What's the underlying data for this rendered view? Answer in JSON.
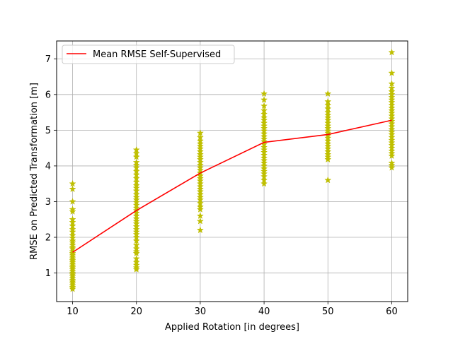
{
  "chart_data": {
    "type": "scatter",
    "title": "",
    "xlabel": "Applied Rotation [in degrees]",
    "ylabel": "RMSE on Predicted Transformation [m]",
    "xlim": [
      7.5,
      62.5
    ],
    "ylim": [
      0.2,
      7.5
    ],
    "xticks": [
      10,
      20,
      30,
      40,
      50,
      60
    ],
    "yticks": [
      1,
      2,
      3,
      4,
      5,
      6,
      7
    ],
    "grid": true,
    "legend": {
      "position": "top-left",
      "entries": [
        "Mean RMSE Self-Supervised"
      ]
    },
    "series": [
      {
        "kind": "scatter",
        "marker": "star",
        "color": "#bfbf00",
        "points": [
          [
            10,
            3.5
          ],
          [
            10,
            3.35
          ],
          [
            10,
            3.0
          ],
          [
            10,
            2.78
          ],
          [
            10,
            2.72
          ],
          [
            10,
            2.5
          ],
          [
            10,
            2.42
          ],
          [
            10,
            2.32
          ],
          [
            10,
            2.22
          ],
          [
            10,
            2.15
          ],
          [
            10,
            2.05
          ],
          [
            10,
            1.98
          ],
          [
            10,
            1.9
          ],
          [
            10,
            1.85
          ],
          [
            10,
            1.78
          ],
          [
            10,
            1.72
          ],
          [
            10,
            1.68
          ],
          [
            10,
            1.6
          ],
          [
            10,
            1.55
          ],
          [
            10,
            1.5
          ],
          [
            10,
            1.45
          ],
          [
            10,
            1.4
          ],
          [
            10,
            1.35
          ],
          [
            10,
            1.3
          ],
          [
            10,
            1.25
          ],
          [
            10,
            1.2
          ],
          [
            10,
            1.15
          ],
          [
            10,
            1.1
          ],
          [
            10,
            1.05
          ],
          [
            10,
            1.0
          ],
          [
            10,
            0.95
          ],
          [
            10,
            0.9
          ],
          [
            10,
            0.85
          ],
          [
            10,
            0.8
          ],
          [
            10,
            0.75
          ],
          [
            10,
            0.7
          ],
          [
            10,
            0.65
          ],
          [
            10,
            0.6
          ],
          [
            10,
            0.55
          ],
          [
            20,
            4.45
          ],
          [
            20,
            4.35
          ],
          [
            20,
            4.25
          ],
          [
            20,
            4.1
          ],
          [
            20,
            4.02
          ],
          [
            20,
            3.95
          ],
          [
            20,
            3.85
          ],
          [
            20,
            3.75
          ],
          [
            20,
            3.65
          ],
          [
            20,
            3.55
          ],
          [
            20,
            3.45
          ],
          [
            20,
            3.38
          ],
          [
            20,
            3.3
          ],
          [
            20,
            3.2
          ],
          [
            20,
            3.12
          ],
          [
            20,
            3.05
          ],
          [
            20,
            2.98
          ],
          [
            20,
            2.9
          ],
          [
            20,
            2.82
          ],
          [
            20,
            2.75
          ],
          [
            20,
            2.68
          ],
          [
            20,
            2.6
          ],
          [
            20,
            2.52
          ],
          [
            20,
            2.45
          ],
          [
            20,
            2.38
          ],
          [
            20,
            2.3
          ],
          [
            20,
            2.22
          ],
          [
            20,
            2.15
          ],
          [
            20,
            2.08
          ],
          [
            20,
            2.0
          ],
          [
            20,
            1.9
          ],
          [
            20,
            1.78
          ],
          [
            20,
            1.68
          ],
          [
            20,
            1.6
          ],
          [
            20,
            1.55
          ],
          [
            20,
            1.4
          ],
          [
            20,
            1.3
          ],
          [
            20,
            1.22
          ],
          [
            20,
            1.15
          ],
          [
            20,
            1.1
          ],
          [
            30,
            4.92
          ],
          [
            30,
            4.8
          ],
          [
            30,
            4.7
          ],
          [
            30,
            4.62
          ],
          [
            30,
            4.55
          ],
          [
            30,
            4.48
          ],
          [
            30,
            4.4
          ],
          [
            30,
            4.32
          ],
          [
            30,
            4.25
          ],
          [
            30,
            4.18
          ],
          [
            30,
            4.1
          ],
          [
            30,
            4.02
          ],
          [
            30,
            3.95
          ],
          [
            30,
            3.88
          ],
          [
            30,
            3.8
          ],
          [
            30,
            3.72
          ],
          [
            30,
            3.65
          ],
          [
            30,
            3.58
          ],
          [
            30,
            3.5
          ],
          [
            30,
            3.42
          ],
          [
            30,
            3.35
          ],
          [
            30,
            3.28
          ],
          [
            30,
            3.2
          ],
          [
            30,
            3.12
          ],
          [
            30,
            3.05
          ],
          [
            30,
            2.95
          ],
          [
            30,
            2.85
          ],
          [
            30,
            2.78
          ],
          [
            30,
            2.6
          ],
          [
            30,
            2.45
          ],
          [
            30,
            2.2
          ],
          [
            40,
            6.02
          ],
          [
            40,
            5.85
          ],
          [
            40,
            5.68
          ],
          [
            40,
            5.55
          ],
          [
            40,
            5.45
          ],
          [
            40,
            5.35
          ],
          [
            40,
            5.28
          ],
          [
            40,
            5.2
          ],
          [
            40,
            5.12
          ],
          [
            40,
            5.05
          ],
          [
            40,
            4.98
          ],
          [
            40,
            4.9
          ],
          [
            40,
            4.82
          ],
          [
            40,
            4.75
          ],
          [
            40,
            4.68
          ],
          [
            40,
            4.6
          ],
          [
            40,
            4.52
          ],
          [
            40,
            4.45
          ],
          [
            40,
            4.38
          ],
          [
            40,
            4.3
          ],
          [
            40,
            4.22
          ],
          [
            40,
            4.15
          ],
          [
            40,
            4.08
          ],
          [
            40,
            4.0
          ],
          [
            40,
            3.92
          ],
          [
            40,
            3.85
          ],
          [
            40,
            3.78
          ],
          [
            40,
            3.7
          ],
          [
            40,
            3.6
          ],
          [
            40,
            3.5
          ],
          [
            50,
            6.02
          ],
          [
            50,
            5.8
          ],
          [
            50,
            5.7
          ],
          [
            50,
            5.6
          ],
          [
            50,
            5.5
          ],
          [
            50,
            5.42
          ],
          [
            50,
            5.35
          ],
          [
            50,
            5.28
          ],
          [
            50,
            5.2
          ],
          [
            50,
            5.12
          ],
          [
            50,
            5.05
          ],
          [
            50,
            4.98
          ],
          [
            50,
            4.92
          ],
          [
            50,
            4.85
          ],
          [
            50,
            4.78
          ],
          [
            50,
            4.7
          ],
          [
            50,
            4.62
          ],
          [
            50,
            4.55
          ],
          [
            50,
            4.48
          ],
          [
            50,
            4.4
          ],
          [
            50,
            4.32
          ],
          [
            50,
            4.25
          ],
          [
            50,
            4.18
          ],
          [
            50,
            3.6
          ],
          [
            60,
            7.18
          ],
          [
            60,
            6.6
          ],
          [
            60,
            6.3
          ],
          [
            60,
            6.18
          ],
          [
            60,
            6.08
          ],
          [
            60,
            6.0
          ],
          [
            60,
            5.92
          ],
          [
            60,
            5.85
          ],
          [
            60,
            5.78
          ],
          [
            60,
            5.7
          ],
          [
            60,
            5.62
          ],
          [
            60,
            5.55
          ],
          [
            60,
            5.48
          ],
          [
            60,
            5.4
          ],
          [
            60,
            5.32
          ],
          [
            60,
            5.25
          ],
          [
            60,
            5.18
          ],
          [
            60,
            5.1
          ],
          [
            60,
            5.02
          ],
          [
            60,
            4.95
          ],
          [
            60,
            4.88
          ],
          [
            60,
            4.8
          ],
          [
            60,
            4.72
          ],
          [
            60,
            4.65
          ],
          [
            60,
            4.58
          ],
          [
            60,
            4.5
          ],
          [
            60,
            4.42
          ],
          [
            60,
            4.35
          ],
          [
            60,
            4.28
          ],
          [
            60,
            4.08
          ],
          [
            60,
            4.02
          ],
          [
            60,
            3.95
          ]
        ]
      },
      {
        "kind": "line",
        "name": "Mean RMSE Self-Supervised",
        "color": "#ff0000",
        "x": [
          10,
          20,
          30,
          40,
          50,
          60
        ],
        "y": [
          1.58,
          2.75,
          3.8,
          4.66,
          4.88,
          5.28
        ]
      }
    ]
  }
}
